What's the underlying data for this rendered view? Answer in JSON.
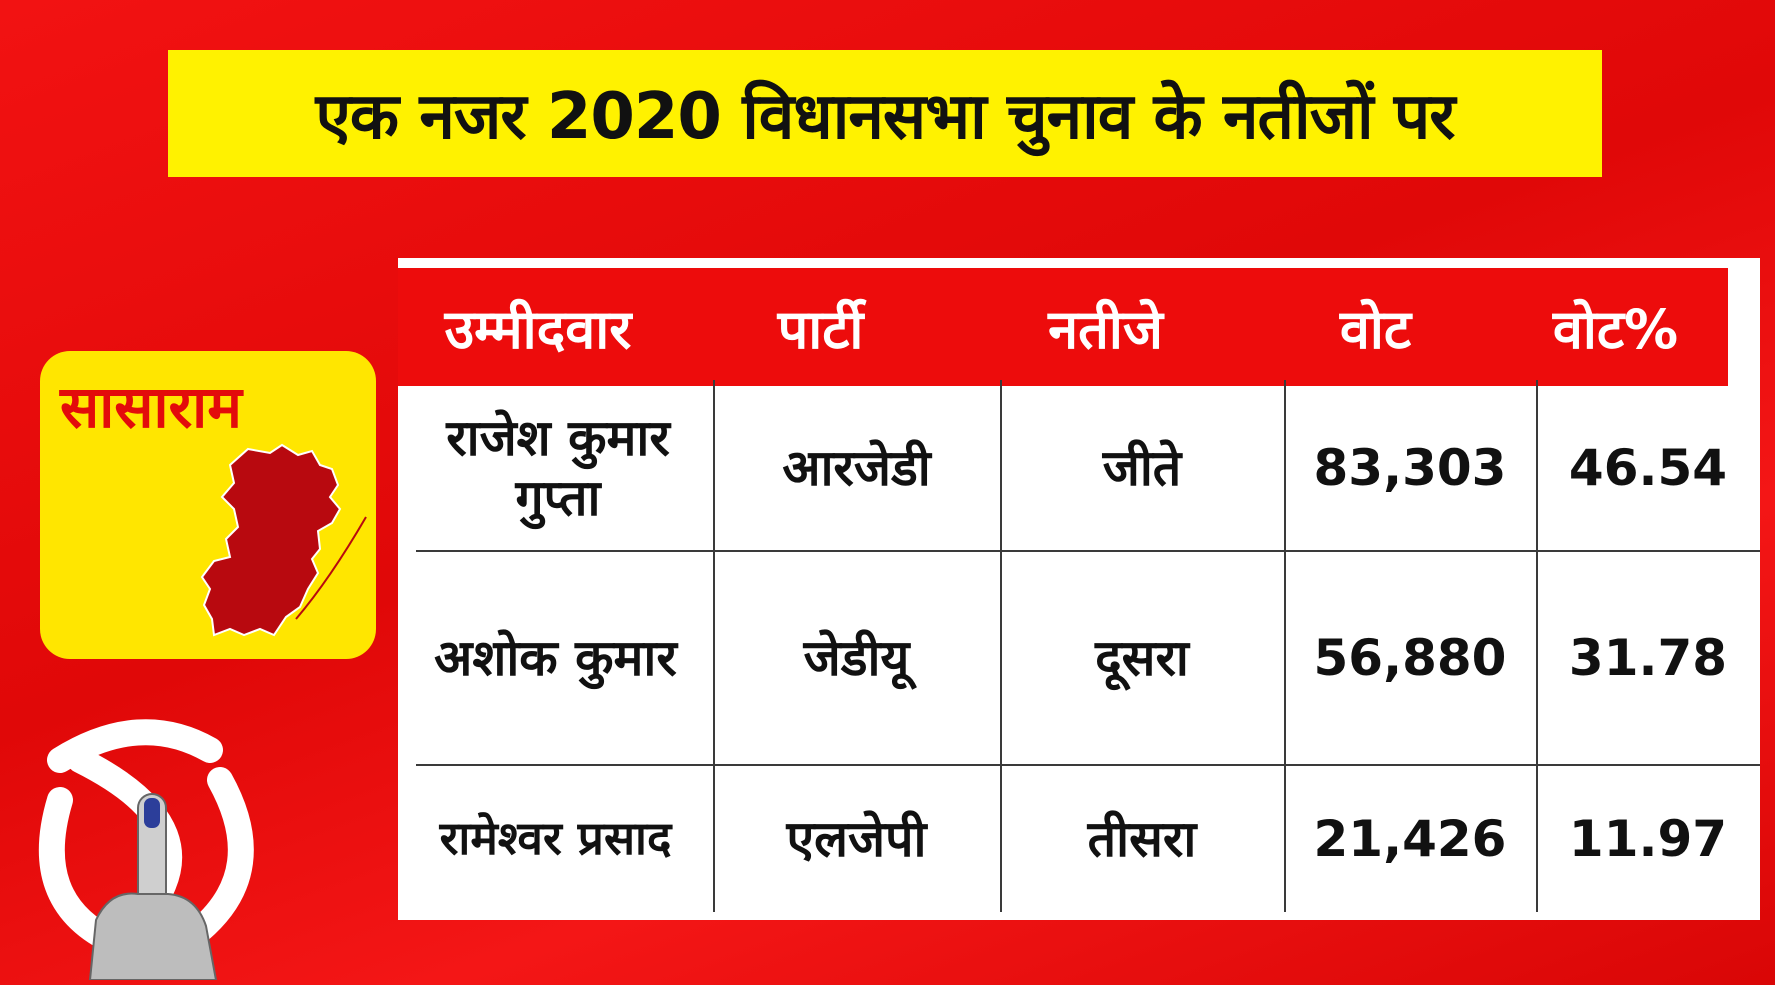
{
  "title": "एक नजर 2020 विधानसभा चुनाव के नतीजों पर",
  "constituency": "सासाराम",
  "table": {
    "headers": [
      "उम्मीदवार",
      "पार्टी",
      "नतीजे",
      "वोट",
      "वोट%"
    ],
    "rows": [
      {
        "candidate": "राजेश कुमार गुप्ता",
        "party": "आरजेडी",
        "result": "जीते",
        "votes": "83,303",
        "vote_pct": "46.54"
      },
      {
        "candidate": "अशोक कुमार",
        "party": "जेडीयू",
        "result": "दूसरा",
        "votes": "56,880",
        "vote_pct": "31.78"
      },
      {
        "candidate": "रामेश्वर प्रसाद",
        "party": "एलजेपी",
        "result": "तीसरा",
        "votes": "21,426",
        "vote_pct": "11.97"
      }
    ]
  },
  "colors": {
    "background": "#e60b0b",
    "banner": "#fff200",
    "header_row": "#ed0c0c",
    "map_fill": "#b8090f"
  },
  "icons": [
    "map-icon",
    "election-symbol-icon",
    "voting-finger-icon"
  ]
}
